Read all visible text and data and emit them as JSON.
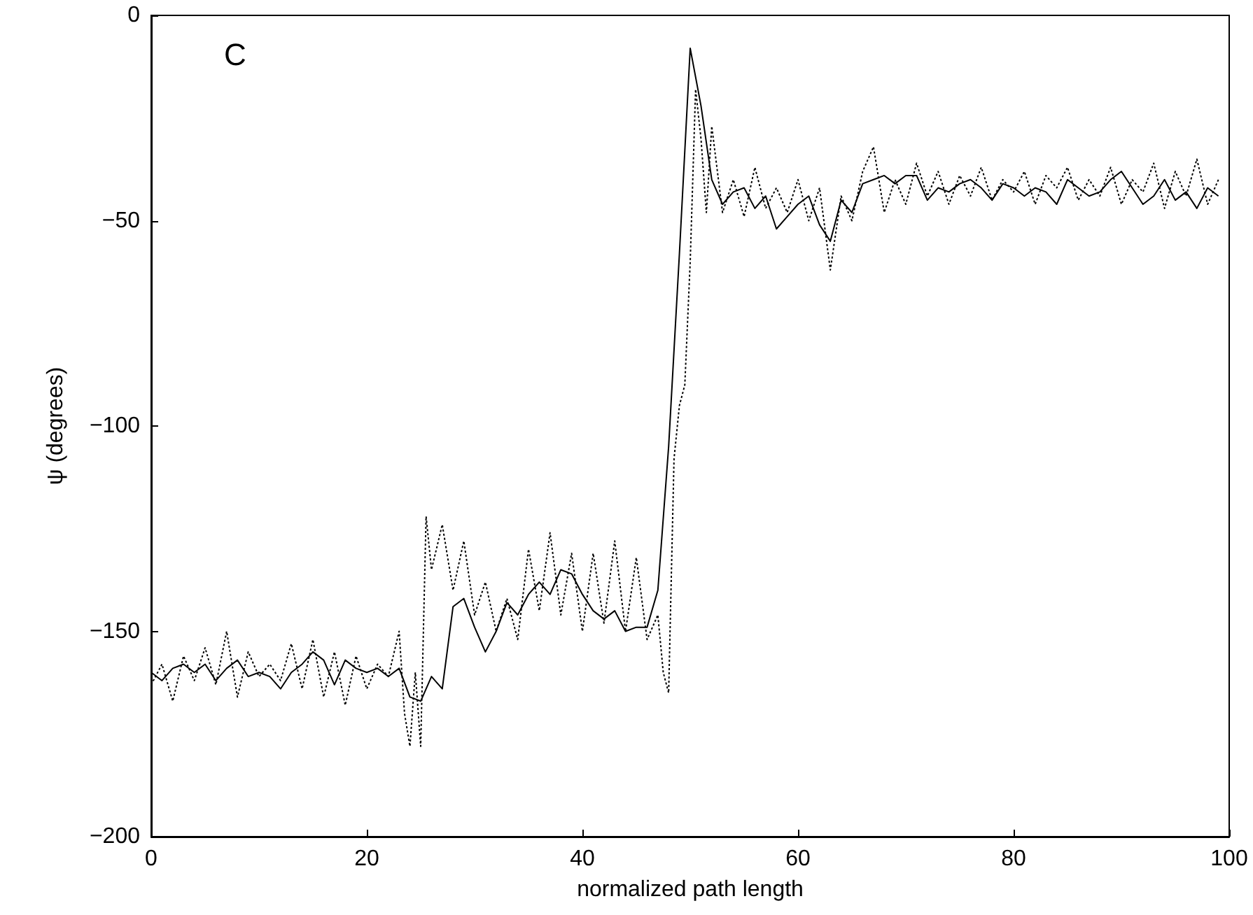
{
  "chart_data": {
    "type": "line",
    "xlabel": "normalized path length",
    "ylabel": "ψ (degrees)",
    "annotations": [
      "C"
    ],
    "xlim": [
      0,
      100
    ],
    "xticks": [
      0,
      20,
      40,
      60,
      80,
      100
    ],
    "ylim": [
      -200,
      0
    ],
    "yticks": [
      -200,
      -150,
      -100,
      -50,
      0
    ],
    "marker": "none",
    "series": [
      {
        "color": "#000000",
        "line_style": "solid",
        "x": [
          0,
          1,
          2,
          3,
          4,
          5,
          6,
          7,
          8,
          9,
          10,
          11,
          12,
          13,
          14,
          15,
          16,
          17,
          18,
          19,
          20,
          21,
          22,
          23,
          24,
          25,
          26,
          27,
          28,
          29,
          30,
          31,
          32,
          33,
          34,
          35,
          36,
          37,
          38,
          39,
          40,
          41,
          42,
          43,
          44,
          45,
          46,
          47,
          48,
          49,
          50,
          51,
          52,
          53,
          54,
          55,
          56,
          57,
          58,
          59,
          60,
          61,
          62,
          63,
          64,
          65,
          66,
          67,
          68,
          69,
          70,
          71,
          72,
          73,
          74,
          75,
          76,
          77,
          78,
          79,
          80,
          81,
          82,
          83,
          84,
          85,
          86,
          87,
          88,
          89,
          90,
          91,
          92,
          93,
          94,
          95,
          96,
          97,
          98,
          99
        ],
        "values": [
          -160,
          -162,
          -159,
          -158,
          -160,
          -158,
          -162,
          -159,
          -157,
          -161,
          -160,
          -161,
          -164,
          -160,
          -158,
          -155,
          -157,
          -163,
          -157,
          -159,
          -160,
          -159,
          -161,
          -159,
          -166,
          -167,
          -161,
          -164,
          -144,
          -142,
          -149,
          -155,
          -150,
          -143,
          -146,
          -141,
          -138,
          -141,
          -135,
          -136,
          -141,
          -145,
          -147,
          -145,
          -150,
          -149,
          -149,
          -140,
          -105,
          -58,
          -8,
          -22,
          -40,
          -46,
          -43,
          -42,
          -47,
          -44,
          -52,
          -49,
          -46,
          -44,
          -51,
          -55,
          -45,
          -48,
          -41,
          -40,
          -39,
          -41,
          -39,
          -39,
          -45,
          -42,
          -43,
          -41,
          -40,
          -42,
          -45,
          -41,
          -42,
          -44,
          -42,
          -43,
          -46,
          -40,
          -42,
          -44,
          -43,
          -40,
          -38,
          -42,
          -46,
          -44,
          -40,
          -45,
          -43,
          -47,
          -42,
          -44
        ]
      },
      {
        "color": "#000000",
        "line_style": "dotted",
        "x": [
          0,
          1,
          2,
          3,
          4,
          5,
          6,
          7,
          8,
          9,
          10,
          11,
          12,
          13,
          14,
          15,
          16,
          17,
          18,
          19,
          20,
          21,
          22,
          23,
          23.5,
          24,
          24.5,
          25,
          25.5,
          26,
          27,
          28,
          29,
          30,
          31,
          32,
          33,
          34,
          35,
          36,
          37,
          38,
          39,
          40,
          41,
          42,
          43,
          44,
          45,
          46,
          47,
          47.5,
          48,
          48.5,
          49,
          49.5,
          50,
          50.5,
          51,
          51.5,
          52,
          53,
          54,
          55,
          56,
          57,
          58,
          59,
          60,
          61,
          62,
          63,
          64,
          65,
          66,
          67,
          68,
          69,
          70,
          71,
          72,
          73,
          74,
          75,
          76,
          77,
          78,
          79,
          80,
          81,
          82,
          83,
          84,
          85,
          86,
          87,
          88,
          89,
          90,
          91,
          92,
          93,
          94,
          95,
          96,
          97,
          98,
          99
        ],
        "values": [
          -163,
          -158,
          -167,
          -156,
          -162,
          -154,
          -163,
          -150,
          -166,
          -155,
          -161,
          -158,
          -162,
          -153,
          -164,
          -152,
          -166,
          -155,
          -168,
          -156,
          -164,
          -158,
          -161,
          -150,
          -170,
          -178,
          -160,
          -178,
          -122,
          -135,
          -124,
          -140,
          -128,
          -146,
          -138,
          -150,
          -142,
          -152,
          -130,
          -145,
          -126,
          -146,
          -131,
          -150,
          -131,
          -148,
          -128,
          -150,
          -132,
          -152,
          -146,
          -160,
          -165,
          -108,
          -95,
          -90,
          -60,
          -18,
          -30,
          -48,
          -27,
          -48,
          -40,
          -49,
          -37,
          -47,
          -42,
          -48,
          -40,
          -50,
          -42,
          -62,
          -44,
          -50,
          -38,
          -32,
          -48,
          -40,
          -46,
          -36,
          -44,
          -38,
          -46,
          -39,
          -44,
          -37,
          -45,
          -40,
          -43,
          -38,
          -46,
          -39,
          -42,
          -37,
          -45,
          -40,
          -44,
          -37,
          -46,
          -40,
          -43,
          -36,
          -47,
          -38,
          -44,
          -35,
          -46,
          -40
        ]
      }
    ]
  }
}
